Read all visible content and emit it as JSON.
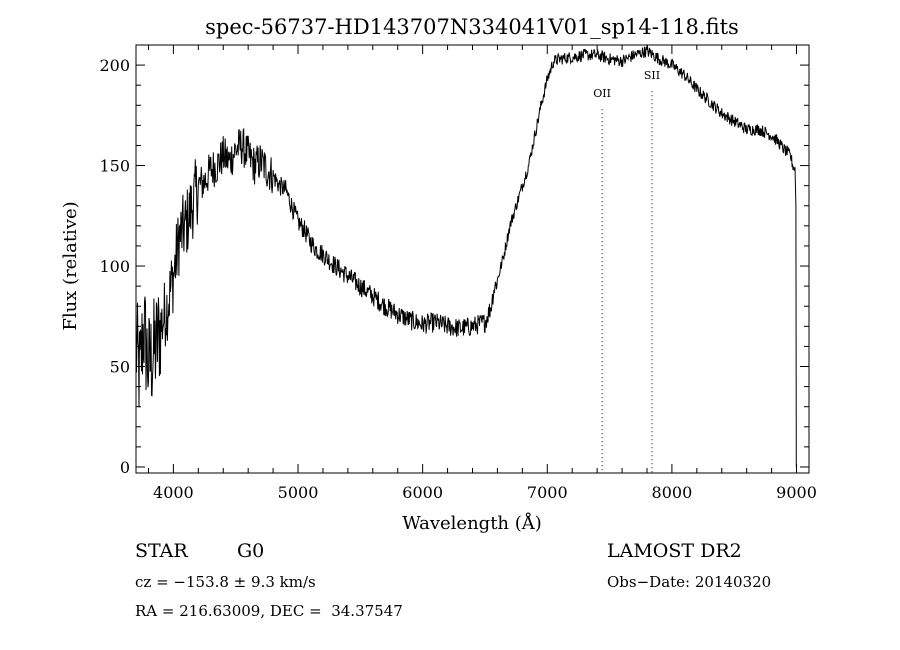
{
  "chart_data": {
    "type": "line",
    "title": "spec-56737-HD143707N334041V01_sp14-118.fits",
    "xlabel": "Wavelength (Å)",
    "ylabel": "Flux (relative)",
    "xlim": [
      3700,
      9100
    ],
    "ylim": [
      -3,
      210
    ],
    "x_ticks": [
      4000,
      5000,
      6000,
      7000,
      8000,
      9000
    ],
    "y_ticks": [
      0,
      50,
      100,
      150,
      200
    ],
    "grid": false,
    "series": [
      {
        "color": "#000000",
        "x": [
          3700,
          3730,
          3760,
          3800,
          3830,
          3860,
          3900,
          3950,
          4000,
          4050,
          4100,
          4150,
          4200,
          4250,
          4300,
          4350,
          4400,
          4450,
          4500,
          4550,
          4600,
          4650,
          4700,
          4750,
          4800,
          4850,
          4900,
          4950,
          5000,
          5050,
          5100,
          5150,
          5200,
          5300,
          5400,
          5500,
          5600,
          5700,
          5800,
          5900,
          6000,
          6100,
          6200,
          6300,
          6400,
          6500,
          6550,
          6570,
          6600,
          6650,
          6700,
          6750,
          6800,
          6850,
          6900,
          6950,
          7000,
          7050,
          7100,
          7200,
          7300,
          7400,
          7500,
          7600,
          7700,
          7800,
          7900,
          8000,
          8100,
          8200,
          8300,
          8400,
          8500,
          8600,
          8700,
          8800,
          8850,
          8900,
          8950,
          8970,
          8990
        ],
        "y": [
          60,
          45,
          70,
          50,
          55,
          60,
          70,
          80,
          95,
          115,
          120,
          130,
          140,
          142,
          148,
          150,
          155,
          152,
          158,
          160,
          155,
          150,
          152,
          148,
          145,
          140,
          138,
          130,
          122,
          118,
          112,
          108,
          106,
          100,
          95,
          90,
          85,
          80,
          76,
          73,
          71,
          72,
          70,
          69,
          70,
          72,
          80,
          88,
          93,
          105,
          120,
          130,
          140,
          150,
          165,
          180,
          193,
          202,
          203,
          204,
          205,
          205,
          203,
          202,
          205,
          207,
          203,
          200,
          195,
          188,
          182,
          176,
          172,
          168,
          168,
          165,
          162,
          158,
          155,
          150,
          148
        ]
      }
    ],
    "lines": [
      {
        "label": "OII",
        "x": 7440,
        "label_y": 184
      },
      {
        "label": "SII",
        "x": 7840,
        "label_y": 193
      }
    ]
  },
  "info": {
    "star_type": "STAR",
    "subclass": "G0",
    "cz": "cz = −153.8 ± 9.3 km/s",
    "radec": "RA = 216.63009, DEC =  34.37547",
    "survey": "LAMOST DR2",
    "obs_date": "Obs−Date: 20140320"
  }
}
